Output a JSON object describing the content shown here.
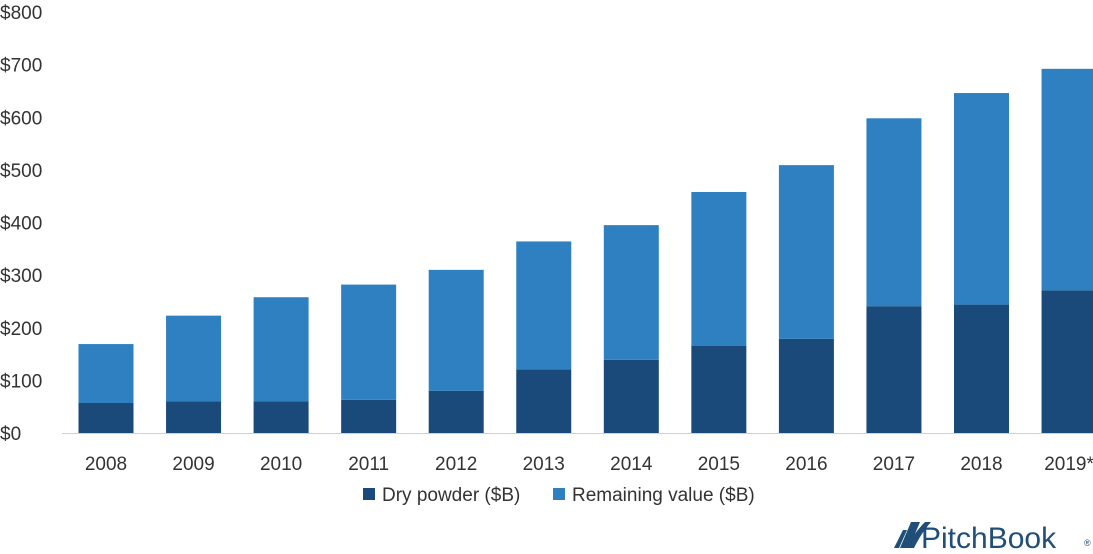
{
  "chart_data": {
    "type": "bar",
    "stacked": true,
    "categories": [
      "2008",
      "2009",
      "2010",
      "2011",
      "2012",
      "2013",
      "2014",
      "2015",
      "2016",
      "2017",
      "2018",
      "2019*"
    ],
    "series": [
      {
        "name": "Dry powder ($B)",
        "color": "#1a4a7a",
        "values": [
          57,
          60,
          60,
          63,
          80,
          121,
          139,
          166,
          179,
          241,
          244,
          271
        ]
      },
      {
        "name": "Remaining value ($B)",
        "color": "#2e80c0",
        "values": [
          112,
          163,
          198,
          219,
          230,
          243,
          256,
          292,
          330,
          357,
          402,
          421
        ]
      }
    ],
    "ylim": [
      0,
      800
    ],
    "yticks": [
      0,
      100,
      200,
      300,
      400,
      500,
      600,
      700,
      800
    ],
    "ytick_labels": [
      "$0",
      "$100",
      "$200",
      "$300",
      "$400",
      "$500",
      "$600",
      "$700",
      "$800"
    ],
    "grid": false,
    "legend_position": "bottom-center"
  },
  "branding": {
    "logo_text": "PitchBook",
    "logo_mark": "®",
    "logo_icon": "pitchbook-sail-icon",
    "logo_color": "#1f4e79"
  }
}
